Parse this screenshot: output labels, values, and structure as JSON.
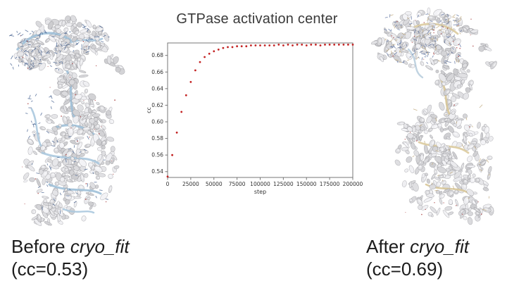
{
  "chart_data": {
    "type": "scatter",
    "title": "GTPase activation center",
    "xlabel": "step",
    "ylabel": "cc",
    "xlim": [
      0,
      200000
    ],
    "ylim": [
      0.533,
      0.695
    ],
    "x_ticks": [
      0,
      25000,
      50000,
      75000,
      100000,
      125000,
      150000,
      175000,
      200000
    ],
    "y_ticks": [
      0.54,
      0.56,
      0.58,
      0.6,
      0.62,
      0.64,
      0.66,
      0.68
    ],
    "grid": false,
    "legend": "none",
    "marker_color": "#c32222",
    "x": [
      0,
      5000,
      10000,
      15000,
      20000,
      25000,
      30000,
      35000,
      40000,
      45000,
      50000,
      55000,
      60000,
      65000,
      70000,
      75000,
      80000,
      85000,
      90000,
      95000,
      100000,
      105000,
      110000,
      115000,
      120000,
      125000,
      130000,
      135000,
      140000,
      145000,
      150000,
      155000,
      160000,
      165000,
      170000,
      175000,
      180000,
      185000,
      190000,
      195000,
      200000
    ],
    "y": [
      0.534,
      0.56,
      0.587,
      0.612,
      0.632,
      0.648,
      0.662,
      0.672,
      0.678,
      0.682,
      0.685,
      0.687,
      0.689,
      0.69,
      0.69,
      0.691,
      0.691,
      0.691,
      0.692,
      0.692,
      0.692,
      0.692,
      0.692,
      0.692,
      0.693,
      0.692,
      0.693,
      0.692,
      0.693,
      0.693,
      0.692,
      0.693,
      0.693,
      0.692,
      0.693,
      0.693,
      0.693,
      0.693,
      0.693,
      0.693,
      0.693
    ]
  },
  "captions": {
    "before": {
      "prefix": "Before ",
      "program": "cryo_fit",
      "cc": "(cc=0.53)"
    },
    "after": {
      "prefix": "After ",
      "program": "cryo_fit",
      "cc": "(cc=0.69)"
    }
  },
  "colors": {
    "axis": "#777777",
    "tick_text": "#333333",
    "title_text": "#3a3a3a",
    "caption_text": "#1c1c1c",
    "density_gray": "#dcdcdc",
    "ribbon_blue": "#a5c4da",
    "stick_blue": "#44608f",
    "stick_tan": "#bfa87c",
    "atom_red": "#a84040"
  }
}
